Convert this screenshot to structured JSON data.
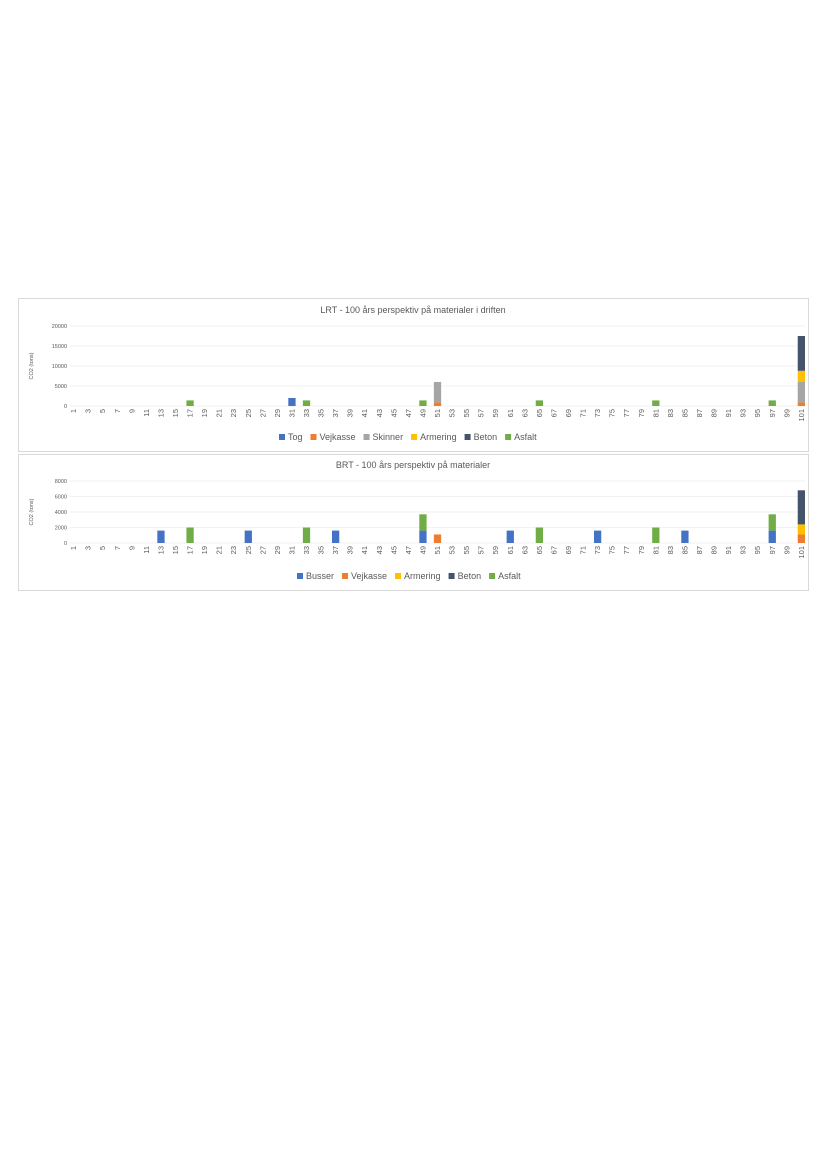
{
  "colors": {
    "Tog": "#4472C4",
    "Busser": "#4472C4",
    "Vejkasse": "#ED7D31",
    "Skinner": "#A5A5A5",
    "Armering": "#FFC000",
    "Beton": "#44546A",
    "Asfalt": "#70AD47"
  },
  "chart_data": [
    {
      "type": "bar",
      "stacked": true,
      "title": "LRT - 100 års perspektiv på materialer i driften",
      "ylabel": "CO2 (tons)",
      "xlabel": "",
      "ylim": [
        0,
        20000
      ],
      "yticks": [
        0,
        5000,
        10000,
        15000,
        20000
      ],
      "x_first": 1,
      "x_last": 101,
      "x_tick_step": 2,
      "grid": true,
      "legend": "bottom",
      "series": [
        {
          "name": "Tog",
          "points": [
            {
              "x": 31,
              "y": 2000
            }
          ]
        },
        {
          "name": "Vejkasse",
          "points": [
            {
              "x": 51,
              "y": 900
            },
            {
              "x": 101,
              "y": 900
            }
          ]
        },
        {
          "name": "Skinner",
          "points": [
            {
              "x": 51,
              "y": 5100
            },
            {
              "x": 101,
              "y": 5100
            }
          ]
        },
        {
          "name": "Armering",
          "points": [
            {
              "x": 101,
              "y": 2800
            }
          ]
        },
        {
          "name": "Beton",
          "points": [
            {
              "x": 101,
              "y": 8700
            }
          ]
        },
        {
          "name": "Asfalt",
          "points": [
            {
              "x": 17,
              "y": 1400
            },
            {
              "x": 33,
              "y": 1400
            },
            {
              "x": 49,
              "y": 1400
            },
            {
              "x": 65,
              "y": 1400
            },
            {
              "x": 81,
              "y": 1400
            },
            {
              "x": 97,
              "y": 1400
            }
          ]
        }
      ]
    },
    {
      "type": "bar",
      "stacked": true,
      "title": "BRT - 100 års perspektiv på materialer",
      "ylabel": "CO2 (tons)",
      "xlabel": "",
      "ylim": [
        0,
        8000
      ],
      "yticks": [
        0,
        2000,
        4000,
        6000,
        8000
      ],
      "x_first": 1,
      "x_last": 101,
      "x_tick_step": 2,
      "grid": true,
      "legend": "bottom",
      "series": [
        {
          "name": "Busser",
          "points": [
            {
              "x": 13,
              "y": 1600
            },
            {
              "x": 25,
              "y": 1600
            },
            {
              "x": 37,
              "y": 1600
            },
            {
              "x": 49,
              "y": 1600
            },
            {
              "x": 61,
              "y": 1600
            },
            {
              "x": 73,
              "y": 1600
            },
            {
              "x": 85,
              "y": 1600
            },
            {
              "x": 97,
              "y": 1600
            }
          ]
        },
        {
          "name": "Vejkasse",
          "points": [
            {
              "x": 51,
              "y": 1100
            },
            {
              "x": 101,
              "y": 1100
            }
          ]
        },
        {
          "name": "Armering",
          "points": [
            {
              "x": 101,
              "y": 1300
            }
          ]
        },
        {
          "name": "Beton",
          "points": [
            {
              "x": 101,
              "y": 4400
            }
          ]
        },
        {
          "name": "Asfalt",
          "points": [
            {
              "x": 17,
              "y": 2000
            },
            {
              "x": 33,
              "y": 2000
            },
            {
              "x": 49,
              "y": 2100
            },
            {
              "x": 65,
              "y": 2000
            },
            {
              "x": 81,
              "y": 2000
            },
            {
              "x": 97,
              "y": 2100
            }
          ]
        }
      ]
    }
  ]
}
